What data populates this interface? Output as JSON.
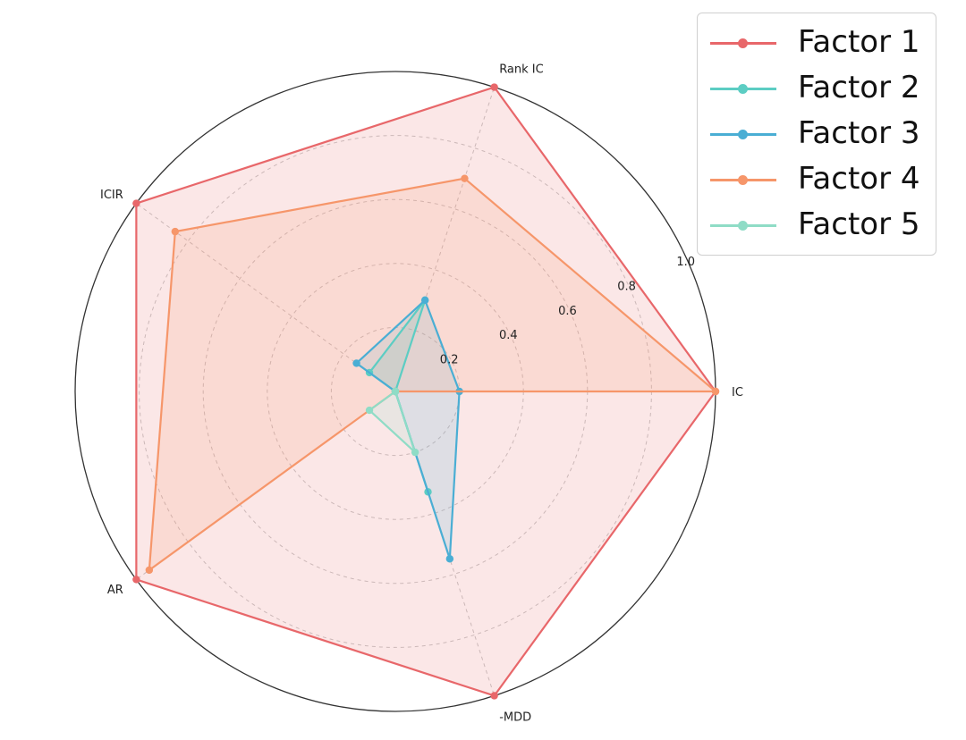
{
  "chart_data": {
    "type": "radar",
    "axes": [
      "IC",
      "Rank IC",
      "ICIR",
      "AR",
      "-MDD"
    ],
    "rlim": [
      0,
      1.0
    ],
    "radial_ticks": [
      "0.2",
      "0.4",
      "0.6",
      "0.8",
      "1.0"
    ],
    "radial_tick_values": [
      0.2,
      0.4,
      0.6,
      0.8,
      1.0
    ],
    "grid": true,
    "legend_position": "top-right",
    "series": [
      {
        "name": "Factor 1",
        "color": "#e8676a",
        "values": [
          1.0,
          1.0,
          1.0,
          1.0,
          1.0
        ],
        "fill": true
      },
      {
        "name": "Factor 2",
        "color": "#5ccdc3",
        "values": [
          0.0,
          0.3,
          0.1,
          0.0,
          0.33
        ],
        "fill": true
      },
      {
        "name": "Factor 3",
        "color": "#4aaed4",
        "values": [
          0.2,
          0.3,
          0.15,
          0.0,
          0.55
        ],
        "fill": true
      },
      {
        "name": "Factor 4",
        "color": "#f6966a",
        "values": [
          1.0,
          0.7,
          0.85,
          0.95,
          0.0
        ],
        "fill": true
      },
      {
        "name": "Factor 5",
        "color": "#8fdcc6",
        "values": [
          0.0,
          0.0,
          0.0,
          0.1,
          0.2
        ],
        "fill": true
      }
    ]
  }
}
